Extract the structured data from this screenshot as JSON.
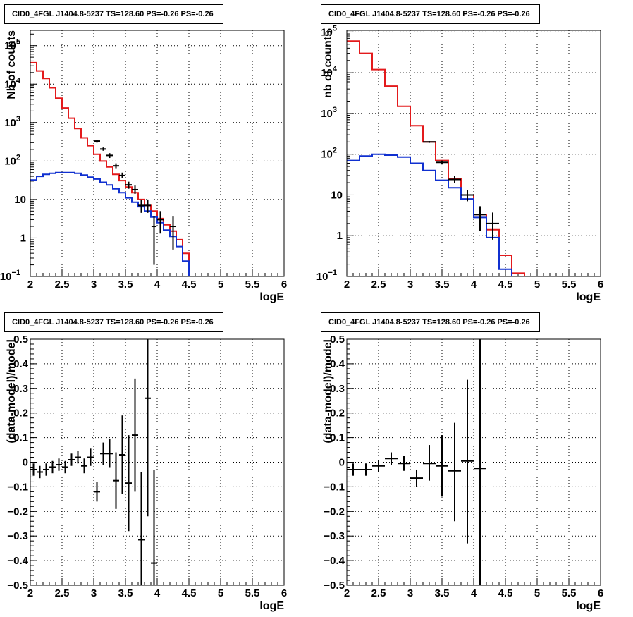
{
  "chart_data": [
    {
      "type": "histogram-step",
      "title": "CID0_4FGL J1404.8-5237 TS=128.60 PS=-0.26 PS=-0.26",
      "xlabel": "logE",
      "ylabel": "Nb of counts",
      "xlim": [
        2,
        6
      ],
      "ylim": [
        0.1,
        250000
      ],
      "yscale": "log",
      "grid": true,
      "xticks": [
        "2",
        "2.5",
        "3",
        "3.5",
        "4",
        "4.5",
        "5",
        "5.5",
        "6"
      ],
      "yticks": [
        {
          "v": 0.1,
          "base": "10",
          "exp": "−1"
        },
        {
          "v": 1,
          "base": "1",
          "exp": ""
        },
        {
          "v": 10,
          "base": "10",
          "exp": ""
        },
        {
          "v": 100,
          "base": "10",
          "exp": "2"
        },
        {
          "v": 1000,
          "base": "10",
          "exp": "3"
        },
        {
          "v": 10000,
          "base": "10",
          "exp": "4"
        },
        {
          "v": 100000,
          "base": "10",
          "exp": "5"
        }
      ],
      "bin_edges": [
        2.0,
        2.1,
        2.2,
        2.3,
        2.4,
        2.5,
        2.6,
        2.7,
        2.8,
        2.9,
        3.0,
        3.1,
        3.2,
        3.3,
        3.4,
        3.5,
        3.6,
        3.7,
        3.8,
        3.9,
        4.0,
        4.1,
        4.2,
        4.3,
        4.4,
        4.5,
        4.6,
        4.7,
        4.8,
        4.9,
        5.0,
        5.1,
        5.2,
        5.3,
        5.4,
        5.5,
        5.6,
        5.7,
        5.8,
        5.9,
        6.0
      ],
      "series": [
        {
          "color": "#e31a1c",
          "kind": "step",
          "values": [
            36000,
            22000,
            14000,
            8000,
            4300,
            2400,
            1300,
            700,
            400,
            250,
            150,
            100,
            70,
            45,
            31,
            21,
            15,
            10,
            7,
            5,
            3.2,
            2.2,
            1.5,
            0.9,
            0.4,
            0.1,
            0.1,
            0.1,
            0.1,
            0.1,
            0.1,
            0.1,
            0.1,
            0.1,
            0.1,
            0.1,
            0.1,
            0.1,
            0.1,
            0.1
          ]
        },
        {
          "color": "#1030d0",
          "kind": "step",
          "values": [
            32,
            40,
            45,
            48,
            50,
            50,
            50,
            48,
            43,
            38,
            34,
            28,
            24,
            19,
            15,
            11,
            8.5,
            6.5,
            5,
            3.5,
            2.5,
            1.6,
            1.1,
            0.6,
            0.25,
            0.1,
            0.1,
            0.1,
            0.1,
            0.1,
            0.1,
            0.1,
            0.1,
            0.1,
            0.1,
            0.1,
            0.1,
            0.1,
            0.1,
            0.1
          ]
        },
        {
          "color": "#000000",
          "kind": "points",
          "points": [
            {
              "x": 3.05,
              "y": 330,
              "lo": 300,
              "hi": 360,
              "xerr": 0.05
            },
            {
              "x": 3.15,
              "y": 205,
              "lo": 185,
              "hi": 225,
              "xerr": 0.05
            },
            {
              "x": 3.25,
              "y": 140,
              "lo": 120,
              "hi": 160,
              "xerr": 0.05
            },
            {
              "x": 3.35,
              "y": 75,
              "lo": 65,
              "hi": 87,
              "xerr": 0.05
            },
            {
              "x": 3.45,
              "y": 42,
              "lo": 36,
              "hi": 50,
              "xerr": 0.05
            },
            {
              "x": 3.55,
              "y": 24,
              "lo": 19,
              "hi": 29,
              "xerr": 0.05
            },
            {
              "x": 3.65,
              "y": 18,
              "lo": 14,
              "hi": 23,
              "xerr": 0.05
            },
            {
              "x": 3.75,
              "y": 7,
              "lo": 4.5,
              "hi": 10,
              "xerr": 0.05
            },
            {
              "x": 3.85,
              "y": 7,
              "lo": 4.5,
              "hi": 10,
              "xerr": 0.05
            },
            {
              "x": 4.05,
              "y": 3,
              "lo": 1.3,
              "hi": 5,
              "xerr": 0.05
            },
            {
              "x": 3.95,
              "y": 2,
              "lo": 0.2,
              "hi": 3.6,
              "xerr": 0
            },
            {
              "x": 4.25,
              "y": 2,
              "lo": 0.5,
              "hi": 3.6,
              "xerr": 0.05
            }
          ]
        }
      ]
    },
    {
      "type": "histogram-step",
      "title": "CID0_4FGL J1404.8-5237 TS=128.60 PS=-0.26 PS=-0.26",
      "xlabel": "logE",
      "ylabel": "nb of counts",
      "xlim": [
        2,
        6
      ],
      "ylim": [
        0.1,
        110000
      ],
      "yscale": "log",
      "grid": true,
      "xticks": [
        "2",
        "2.5",
        "3",
        "3.5",
        "4",
        "4.5",
        "5",
        "5.5",
        "6"
      ],
      "yticks": [
        {
          "v": 0.1,
          "base": "10",
          "exp": "−1"
        },
        {
          "v": 1,
          "base": "1",
          "exp": ""
        },
        {
          "v": 10,
          "base": "10",
          "exp": ""
        },
        {
          "v": 100,
          "base": "10",
          "exp": "2"
        },
        {
          "v": 1000,
          "base": "10",
          "exp": "3"
        },
        {
          "v": 10000,
          "base": "10",
          "exp": "4"
        },
        {
          "v": 100000,
          "base": "10",
          "exp": "5"
        }
      ],
      "bin_edges": [
        2.0,
        2.2,
        2.4,
        2.6,
        2.8,
        3.0,
        3.2,
        3.4,
        3.6,
        3.8,
        4.0,
        4.2,
        4.4,
        4.6,
        4.8,
        5.0,
        5.2,
        5.4,
        5.6,
        5.8,
        6.0
      ],
      "series": [
        {
          "color": "#e31a1c",
          "kind": "step",
          "values": [
            60000,
            30000,
            12000,
            4700,
            1500,
            500,
            200,
            70,
            25,
            10,
            3.3,
            1.4,
            0.33,
            0.12,
            0.1,
            0.1,
            0.1,
            0.1,
            0.1,
            0.1
          ]
        },
        {
          "color": "#1030d0",
          "kind": "step",
          "values": [
            70,
            90,
            100,
            95,
            85,
            60,
            40,
            23,
            15,
            8,
            2.8,
            0.9,
            0.15,
            0.1,
            0.1,
            0.1,
            0.1,
            0.1,
            0.1,
            0.1
          ]
        },
        {
          "color": "#000000",
          "kind": "points",
          "points": [
            {
              "x": 3.3,
              "y": 200,
              "lo": 190,
              "hi": 210,
              "xerr": 0.1
            },
            {
              "x": 3.5,
              "y": 63,
              "lo": 56,
              "hi": 70,
              "xerr": 0.1
            },
            {
              "x": 3.7,
              "y": 24,
              "lo": 20,
              "hi": 29,
              "xerr": 0.1
            },
            {
              "x": 3.9,
              "y": 10,
              "lo": 7,
              "hi": 13,
              "xerr": 0.1
            },
            {
              "x": 4.1,
              "y": 3.3,
              "lo": 1.3,
              "hi": 5.3,
              "xerr": 0.1
            },
            {
              "x": 4.3,
              "y": 2,
              "lo": 0.8,
              "hi": 3.7,
              "xerr": 0.1
            }
          ]
        }
      ]
    },
    {
      "type": "scatter-errorbars",
      "title": "CID0_4FGL J1404.8-5237 TS=128.60 PS=-0.26 PS=-0.26",
      "xlabel": "logE",
      "ylabel": "(data-model)/model",
      "xlim": [
        2,
        6
      ],
      "ylim": [
        -0.5,
        0.5
      ],
      "yscale": "linear",
      "grid": true,
      "xticks": [
        "2",
        "2.5",
        "3",
        "3.5",
        "4",
        "4.5",
        "5",
        "5.5",
        "6"
      ],
      "yticks": [
        "−0.5",
        "−0.4",
        "−0.3",
        "−0.2",
        "−0.1",
        "0",
        "0.1",
        "0.2",
        "0.3",
        "0.4",
        "0.5"
      ],
      "series": [
        {
          "color": "#000000",
          "kind": "points",
          "points": [
            {
              "x": 2.05,
              "y": -0.03,
              "lo": -0.055,
              "hi": -0.005,
              "xerr": 0.05
            },
            {
              "x": 2.15,
              "y": -0.04,
              "lo": -0.065,
              "hi": -0.015,
              "xerr": 0.05
            },
            {
              "x": 2.25,
              "y": -0.03,
              "lo": -0.055,
              "hi": -0.005,
              "xerr": 0.05
            },
            {
              "x": 2.35,
              "y": -0.02,
              "lo": -0.045,
              "hi": 0.005,
              "xerr": 0.05
            },
            {
              "x": 2.45,
              "y": -0.01,
              "lo": -0.035,
              "hi": 0.015,
              "xerr": 0.05
            },
            {
              "x": 2.55,
              "y": -0.02,
              "lo": -0.045,
              "hi": 0.005,
              "xerr": 0.05
            },
            {
              "x": 2.65,
              "y": 0.01,
              "lo": -0.015,
              "hi": 0.035,
              "xerr": 0.05
            },
            {
              "x": 2.75,
              "y": 0.02,
              "lo": -0.005,
              "hi": 0.045,
              "xerr": 0.05
            },
            {
              "x": 2.85,
              "y": -0.015,
              "lo": -0.045,
              "hi": 0.015,
              "xerr": 0.05
            },
            {
              "x": 2.95,
              "y": 0.02,
              "lo": -0.015,
              "hi": 0.055,
              "xerr": 0.05
            },
            {
              "x": 3.05,
              "y": -0.12,
              "lo": -0.16,
              "hi": -0.08,
              "xerr": 0.05
            },
            {
              "x": 3.15,
              "y": 0.035,
              "lo": -0.01,
              "hi": 0.08,
              "xerr": 0.05
            },
            {
              "x": 3.25,
              "y": 0.035,
              "lo": -0.02,
              "hi": 0.095,
              "xerr": 0.05
            },
            {
              "x": 3.35,
              "y": -0.075,
              "lo": -0.19,
              "hi": 0.04,
              "xerr": 0.05
            },
            {
              "x": 3.45,
              "y": 0.03,
              "lo": -0.13,
              "hi": 0.19,
              "xerr": 0.05
            },
            {
              "x": 3.55,
              "y": -0.085,
              "lo": -0.28,
              "hi": 0.11,
              "xerr": 0.05
            },
            {
              "x": 3.65,
              "y": 0.11,
              "lo": -0.12,
              "hi": 0.34,
              "xerr": 0.05
            },
            {
              "x": 3.75,
              "y": -0.315,
              "lo": -0.5,
              "hi": -0.04,
              "xerr": 0.05
            },
            {
              "x": 3.85,
              "y": 0.26,
              "lo": -0.22,
              "hi": 0.5,
              "xerr": 0.05
            },
            {
              "x": 3.95,
              "y": -0.41,
              "lo": -0.5,
              "hi": -0.03,
              "xerr": 0.05
            }
          ]
        }
      ]
    },
    {
      "type": "scatter-errorbars",
      "title": "CID0_4FGL J1404.8-5237 TS=128.60 PS=-0.26 PS=-0.26",
      "xlabel": "logE",
      "ylabel": "(data-model)/model",
      "xlim": [
        2,
        6
      ],
      "ylim": [
        -0.5,
        0.5
      ],
      "yscale": "linear",
      "grid": true,
      "xticks": [
        "2",
        "2.5",
        "3",
        "3.5",
        "4",
        "4.5",
        "5",
        "5.5",
        "6"
      ],
      "yticks": [
        "−0.5",
        "−0.4",
        "−0.3",
        "−0.2",
        "−0.1",
        "0",
        "0.1",
        "0.2",
        "0.3",
        "0.4",
        "0.5"
      ],
      "series": [
        {
          "color": "#000000",
          "kind": "points",
          "points": [
            {
              "x": 2.1,
              "y": -0.03,
              "lo": -0.055,
              "hi": -0.005,
              "xerr": 0.1
            },
            {
              "x": 2.3,
              "y": -0.03,
              "lo": -0.055,
              "hi": -0.005,
              "xerr": 0.1
            },
            {
              "x": 2.5,
              "y": -0.015,
              "lo": -0.04,
              "hi": 0.01,
              "xerr": 0.1
            },
            {
              "x": 2.7,
              "y": 0.015,
              "lo": -0.01,
              "hi": 0.04,
              "xerr": 0.1
            },
            {
              "x": 2.9,
              "y": -0.005,
              "lo": -0.035,
              "hi": 0.025,
              "xerr": 0.1
            },
            {
              "x": 3.1,
              "y": -0.065,
              "lo": -0.1,
              "hi": -0.03,
              "xerr": 0.1
            },
            {
              "x": 3.3,
              "y": -0.005,
              "lo": -0.075,
              "hi": 0.07,
              "xerr": 0.1
            },
            {
              "x": 3.5,
              "y": -0.015,
              "lo": -0.14,
              "hi": 0.11,
              "xerr": 0.1
            },
            {
              "x": 3.7,
              "y": -0.035,
              "lo": -0.24,
              "hi": 0.16,
              "xerr": 0.1
            },
            {
              "x": 3.9,
              "y": 0.005,
              "lo": -0.33,
              "hi": 0.335,
              "xerr": 0.1
            },
            {
              "x": 4.1,
              "y": -0.025,
              "lo": -0.5,
              "hi": 0.5,
              "xerr": 0.1
            }
          ]
        }
      ]
    }
  ]
}
